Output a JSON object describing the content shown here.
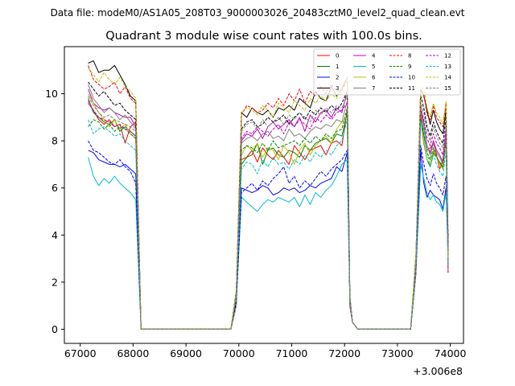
{
  "figure": {
    "suptitle": "Data file: modeM0/AS1A05_208T03_9000003026_20483cztM0_level2_quad_clean.evt"
  },
  "chart_data": {
    "type": "line",
    "title": "Quadrant 3 module wise count rates with 100.0s bins.",
    "xlabel": "",
    "ylabel": "",
    "x_offset_label": "+3.006e8",
    "xlim": [
      66700,
      74250
    ],
    "ylim": [
      -0.6,
      12.0
    ],
    "xticks": [
      67000,
      68000,
      69000,
      70000,
      71000,
      72000,
      73000,
      74000
    ],
    "xtick_labels": [
      "67000",
      "68000",
      "69000",
      "70000",
      "71000",
      "72000",
      "73000",
      "74000"
    ],
    "yticks": [
      0,
      2,
      4,
      6,
      8,
      10
    ],
    "ytick_labels": [
      "0",
      "2",
      "4",
      "6",
      "8",
      "10"
    ],
    "grid": false,
    "legend_position": "top-right",
    "segments": [
      {
        "start": 67150,
        "end": 68050,
        "drop_to": 68150
      },
      {
        "start": 69900,
        "end": 70050,
        "end_flat": 69900
      },
      {
        "start": 70050,
        "end": 72050,
        "drop_to": 72150
      },
      {
        "start": 73200,
        "end": 73900,
        "drop_to": 73950
      }
    ],
    "gap_zero_ranges": [
      [
        68150,
        69900
      ],
      [
        72250,
        73250
      ]
    ],
    "series": [
      {
        "name": "0",
        "color": "#ff0000",
        "dashed": false,
        "seg1": [
          9.6,
          9.3,
          8.9,
          8.7,
          8.9,
          8.6,
          8.7,
          7.9,
          8.6,
          8.8
        ],
        "seg2": [
          7.2,
          7.3,
          7.6,
          7.1,
          7.7,
          7.4,
          7.2,
          7.6,
          7.3,
          7.0,
          7.8,
          7.5,
          7.2,
          7.6,
          7.7,
          7.8,
          7.4,
          7.9,
          8.0,
          7.8,
          9.3
        ],
        "seg3": [
          8.2,
          7.6,
          7.7,
          7.9,
          7.4,
          6.8,
          7.2,
          8.4
        ],
        "seg3_peak": 9.3
      },
      {
        "name": "1",
        "color": "#008000",
        "dashed": false,
        "seg1": [
          9.8,
          9.2,
          9.0,
          8.8,
          8.7,
          8.9,
          8.4,
          8.6,
          8.4,
          8.2
        ],
        "seg2": [
          7.0,
          7.3,
          7.4,
          7.9,
          7.0,
          7.6,
          7.7,
          7.4,
          7.3,
          7.6,
          7.5,
          7.3,
          7.8,
          7.6,
          7.9,
          8.0,
          8.1,
          7.9,
          8.3,
          8.2,
          9.2
        ],
        "seg3": [
          7.9,
          7.2,
          6.9,
          7.5,
          7.3,
          7.1,
          6.8,
          8.2
        ],
        "seg3_peak": 9.0
      },
      {
        "name": "2",
        "color": "#0000ff",
        "dashed": false,
        "seg1": [
          7.6,
          7.5,
          7.2,
          7.1,
          7.0,
          7.0,
          6.9,
          7.0,
          6.8,
          6.6
        ],
        "seg2": [
          6.0,
          5.9,
          5.8,
          5.9,
          6.1,
          6.0,
          5.7,
          5.8,
          6.0,
          5.9,
          6.0,
          5.8,
          5.9,
          6.1,
          6.0,
          6.2,
          6.3,
          6.4,
          6.9,
          6.7,
          7.5
        ],
        "seg3": [
          6.2,
          5.6,
          5.9,
          5.7,
          5.6,
          5.5,
          5.1,
          6.0
        ],
        "seg3_peak": 7.6
      },
      {
        "name": "3",
        "color": "#000000",
        "dashed": false,
        "seg1": [
          11.3,
          11.4,
          10.9,
          11.0,
          11.0,
          11.2,
          10.8,
          10.4,
          9.9,
          9.7
        ],
        "seg2": [
          9.2,
          9.0,
          9.4,
          9.2,
          9.1,
          9.3,
          9.0,
          9.4,
          9.3,
          9.5,
          9.3,
          9.8,
          9.6,
          9.4,
          10.1,
          9.8,
          9.7,
          10.3,
          9.9,
          10.2,
          10.7
        ],
        "seg3": [
          9.9,
          9.3,
          8.7,
          9.3,
          8.8,
          8.5,
          8.3,
          9.3
        ],
        "seg3_peak": 10.2
      },
      {
        "name": "4",
        "color": "#bf00bf",
        "dashed": false,
        "seg1": [
          10.2,
          9.6,
          9.4,
          9.3,
          9.4,
          9.2,
          9.1,
          9.0,
          9.0,
          8.6
        ],
        "seg2": [
          8.0,
          8.3,
          8.2,
          8.5,
          8.1,
          8.6,
          8.8,
          8.5,
          8.7,
          8.9,
          8.6,
          9.0,
          8.4,
          9.1,
          8.8,
          9.2,
          9.3,
          9.0,
          9.4,
          9.2,
          10.1
        ],
        "seg3": [
          8.7,
          7.8,
          7.5,
          8.0,
          7.6,
          7.4,
          7.1,
          8.3
        ],
        "seg3_peak": 9.5
      },
      {
        "name": "5",
        "color": "#00bfbf",
        "dashed": false,
        "seg1": [
          7.3,
          6.5,
          6.1,
          6.4,
          6.2,
          6.5,
          6.2,
          6.0,
          5.8,
          5.5
        ],
        "seg2": [
          5.6,
          5.4,
          5.2,
          5.0,
          5.3,
          5.5,
          5.4,
          5.6,
          5.5,
          5.4,
          5.6,
          5.2,
          5.7,
          5.3,
          5.8,
          5.6,
          5.9,
          6.1,
          6.5,
          7.0,
          7.2
        ],
        "seg3": [
          6.4,
          5.8,
          5.5,
          5.7,
          5.4,
          5.3,
          5.0,
          5.8
        ],
        "seg3_peak": 7.0
      },
      {
        "name": "6",
        "color": "#bfbf00",
        "dashed": false,
        "seg1": [
          10.0,
          9.6,
          9.2,
          8.9,
          8.6,
          8.9,
          8.5,
          8.7,
          8.3,
          8.1
        ],
        "seg2": [
          7.4,
          7.8,
          7.6,
          7.9,
          7.3,
          7.7,
          7.6,
          7.2,
          7.8,
          7.5,
          7.0,
          7.6,
          7.9,
          7.4,
          7.8,
          8.0,
          8.2,
          7.9,
          8.5,
          8.8,
          9.0
        ],
        "seg3": [
          8.0,
          7.2,
          7.0,
          7.6,
          7.3,
          7.0,
          6.8,
          8.0
        ],
        "seg3_peak": 9.6
      },
      {
        "name": "7",
        "color": "#808080",
        "dashed": false,
        "seg1": [
          10.4,
          9.8,
          9.5,
          9.2,
          9.4,
          9.2,
          8.9,
          9.1,
          8.8,
          8.5
        ],
        "seg2": [
          7.9,
          8.1,
          8.2,
          8.0,
          8.3,
          8.4,
          8.1,
          8.2,
          8.0,
          8.5,
          8.2,
          8.3,
          8.1,
          8.4,
          8.6,
          8.5,
          8.7,
          8.6,
          8.9,
          8.8,
          9.7
        ],
        "seg3": [
          8.6,
          7.8,
          7.4,
          7.9,
          7.5,
          7.3,
          7.0,
          8.2
        ],
        "seg3_peak": 9.3
      },
      {
        "name": "8",
        "color": "#ff0000",
        "dashed": true,
        "seg1": [
          11.2,
          10.6,
          10.4,
          10.2,
          10.3,
          10.5,
          10.0,
          10.3,
          9.8,
          9.6
        ],
        "seg2": [
          9.1,
          9.5,
          9.4,
          9.2,
          9.3,
          9.6,
          9.4,
          9.8,
          9.5,
          10.0,
          9.7,
          10.2,
          9.6,
          10.1,
          9.9,
          10.3,
          10.0,
          10.4,
          10.1,
          10.2,
          10.5
        ],
        "seg3": [
          10.0,
          9.1,
          8.9,
          9.5,
          9.0,
          8.8,
          8.6,
          9.6
        ],
        "seg3_peak": 10.2
      },
      {
        "name": "9",
        "color": "#008000",
        "dashed": true,
        "seg1": [
          8.6,
          8.9,
          8.8,
          8.5,
          8.7,
          8.4,
          8.6,
          8.5,
          8.3,
          8.1
        ],
        "seg2": [
          7.6,
          7.8,
          7.7,
          7.5,
          7.9,
          7.6,
          8.0,
          7.7,
          7.8,
          7.9,
          8.0,
          7.8,
          8.1,
          7.9,
          8.2,
          8.0,
          8.3,
          8.1,
          8.4,
          8.5,
          9.4
        ],
        "seg3": [
          8.3,
          7.5,
          7.2,
          7.7,
          7.3,
          7.1,
          6.9,
          8.0
        ],
        "seg3_peak": 9.0
      },
      {
        "name": "10",
        "color": "#0000ff",
        "dashed": true,
        "seg1": [
          8.0,
          7.6,
          7.5,
          7.3,
          7.1,
          7.0,
          7.2,
          6.9,
          6.7,
          6.2
        ],
        "seg2": [
          5.8,
          6.0,
          6.2,
          5.9,
          6.3,
          6.1,
          6.4,
          6.6,
          6.9,
          6.2,
          6.5,
          6.0,
          6.3,
          6.1,
          6.4,
          6.7,
          6.5,
          6.8,
          7.0,
          7.2,
          7.6
        ],
        "seg3": [
          7.0,
          6.4,
          6.1,
          6.6,
          6.2,
          6.0,
          5.7,
          6.5
        ],
        "seg3_peak": 7.8
      },
      {
        "name": "11",
        "color": "#000000",
        "dashed": true,
        "seg1": [
          10.5,
          10.2,
          9.9,
          10.1,
          9.8,
          9.5,
          9.6,
          9.3,
          9.1,
          8.9
        ],
        "seg2": [
          8.5,
          8.8,
          8.9,
          8.6,
          8.7,
          9.0,
          8.8,
          8.9,
          9.1,
          8.7,
          9.0,
          9.2,
          8.9,
          9.3,
          9.1,
          9.4,
          9.2,
          9.5,
          9.3,
          9.6,
          10.1
        ],
        "seg3": [
          9.4,
          8.6,
          8.2,
          8.8,
          8.4,
          8.1,
          7.9,
          9.0
        ],
        "seg3_peak": 9.9
      },
      {
        "name": "12",
        "color": "#bf00bf",
        "dashed": true,
        "seg1": [
          9.7,
          9.3,
          9.0,
          8.9,
          8.8,
          8.6,
          8.7,
          8.5,
          8.4,
          8.2
        ],
        "seg2": [
          8.1,
          8.4,
          8.3,
          8.6,
          8.4,
          8.2,
          8.5,
          8.7,
          8.3,
          8.8,
          8.6,
          8.9,
          8.7,
          8.5,
          9.0,
          8.8,
          9.1,
          8.9,
          9.2,
          9.3,
          9.6
        ],
        "seg3": [
          8.9,
          8.1,
          7.8,
          8.3,
          7.9,
          7.7,
          7.4,
          8.5
        ],
        "seg3_peak": 9.4
      },
      {
        "name": "13",
        "color": "#00bfbf",
        "dashed": true,
        "seg1": [
          8.9,
          8.3,
          8.5,
          8.6,
          8.4,
          8.2,
          8.3,
          8.0,
          7.8,
          7.6
        ],
        "seg2": [
          6.8,
          7.1,
          7.0,
          6.6,
          7.2,
          6.9,
          7.3,
          7.0,
          7.1,
          6.8,
          7.2,
          7.0,
          7.4,
          7.1,
          7.5,
          7.3,
          7.6,
          7.4,
          7.8,
          8.0,
          8.9
        ],
        "seg3": [
          8.5,
          7.5,
          6.9,
          7.4,
          7.0,
          6.7,
          6.5,
          7.6
        ],
        "seg3_peak": 8.8
      },
      {
        "name": "14",
        "color": "#bfbf00",
        "dashed": true,
        "seg1": [
          11.1,
          10.8,
          10.5,
          10.9,
          10.6,
          10.4,
          10.7,
          10.3,
          10.1,
          9.8
        ],
        "seg2": [
          9.2,
          9.4,
          9.3,
          9.1,
          9.5,
          9.3,
          9.0,
          9.6,
          9.4,
          9.2,
          9.7,
          9.5,
          9.3,
          9.8,
          9.6,
          9.9,
          9.7,
          10.0,
          9.8,
          10.3,
          10.7
        ],
        "seg3": [
          10.2,
          9.4,
          9.0,
          9.6,
          9.2,
          9.0,
          8.7,
          9.7
        ],
        "seg3_peak": 10.3
      },
      {
        "name": "15",
        "color": "#808080",
        "dashed": true,
        "seg1": [
          9.9,
          9.5,
          9.2,
          9.0,
          9.1,
          8.9,
          8.8,
          8.7,
          8.6,
          8.4
        ],
        "seg2": [
          8.4,
          8.7,
          8.8,
          8.5,
          8.9,
          8.6,
          8.8,
          9.0,
          8.7,
          9.1,
          8.9,
          9.2,
          9.0,
          8.8,
          9.3,
          9.1,
          9.4,
          9.2,
          9.5,
          9.4,
          9.9
        ],
        "seg3": [
          9.2,
          8.4,
          8.0,
          8.6,
          8.2,
          7.9,
          7.7,
          8.8
        ],
        "seg3_peak": 9.6
      }
    ]
  }
}
